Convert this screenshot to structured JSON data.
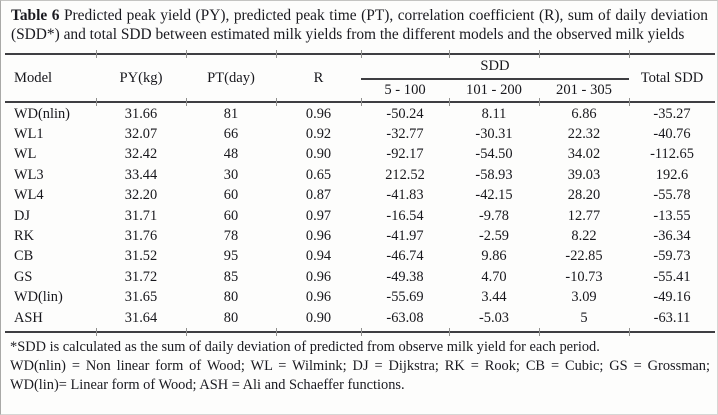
{
  "caption": {
    "label": "Table 6",
    "text": "Predicted peak yield (PY), predicted peak time (PT), correlation coefficient (R), sum of daily deviation (SDD*) and total SDD between estimated milk yields from the different models and the observed milk yields"
  },
  "table": {
    "header": {
      "model": "Model",
      "py": "PY(kg)",
      "pt": "PT(day)",
      "r": "R",
      "sdd": "SDD",
      "sdd_ranges": [
        "5 - 100",
        "101 - 200",
        "201 - 305"
      ],
      "total": "Total SDD"
    },
    "rows": [
      [
        "WD(nlin)",
        "31.66",
        "81",
        "0.96",
        "-50.24",
        "8.11",
        "6.86",
        "-35.27"
      ],
      [
        "WL1",
        "32.07",
        "66",
        "0.92",
        "-32.77",
        "-30.31",
        "22.32",
        "-40.76"
      ],
      [
        "WL",
        "32.42",
        "48",
        "0.90",
        "-92.17",
        "-54.50",
        "34.02",
        "-112.65"
      ],
      [
        "WL3",
        "33.44",
        "30",
        "0.65",
        "212.52",
        "-58.93",
        "39.03",
        "192.6"
      ],
      [
        "WL4",
        "32.20",
        "60",
        "0.87",
        "-41.83",
        "-42.15",
        "28.20",
        "-55.78"
      ],
      [
        "DJ",
        "31.71",
        "60",
        "0.97",
        "-16.54",
        "-9.78",
        "12.77",
        "-13.55"
      ],
      [
        "RK",
        "31.76",
        "78",
        "0.96",
        "-41.97",
        "-2.59",
        "8.22",
        "-36.34"
      ],
      [
        "CB",
        "31.52",
        "95",
        "0.94",
        "-46.74",
        "9.86",
        "-22.85",
        "-59.73"
      ],
      [
        "GS",
        "31.72",
        "85",
        "0.96",
        "-49.38",
        "4.70",
        "-10.73",
        "-55.41"
      ],
      [
        "WD(lin)",
        "31.65",
        "80",
        "0.96",
        "-55.69",
        "3.44",
        "3.09",
        "-49.16"
      ],
      [
        "ASH",
        "31.64",
        "80",
        "0.90",
        "-63.08",
        "-5.03",
        "5",
        "-63.11"
      ]
    ]
  },
  "footnotes": [
    "*SDD is calculated as the sum of daily deviation of predicted from observe milk yield for each period.",
    "WD(nlin) = Non linear form of Wood; WL = Wilmink; DJ = Dijkstra; RK = Rook; CB = Cubic; GS = Grossman; WD(lin)= Linear form of Wood; ASH = Ali and Schaeffer functions."
  ],
  "colors": {
    "text": "#17171c",
    "rule": "#3e3e42",
    "background": "#fdfdfc"
  }
}
